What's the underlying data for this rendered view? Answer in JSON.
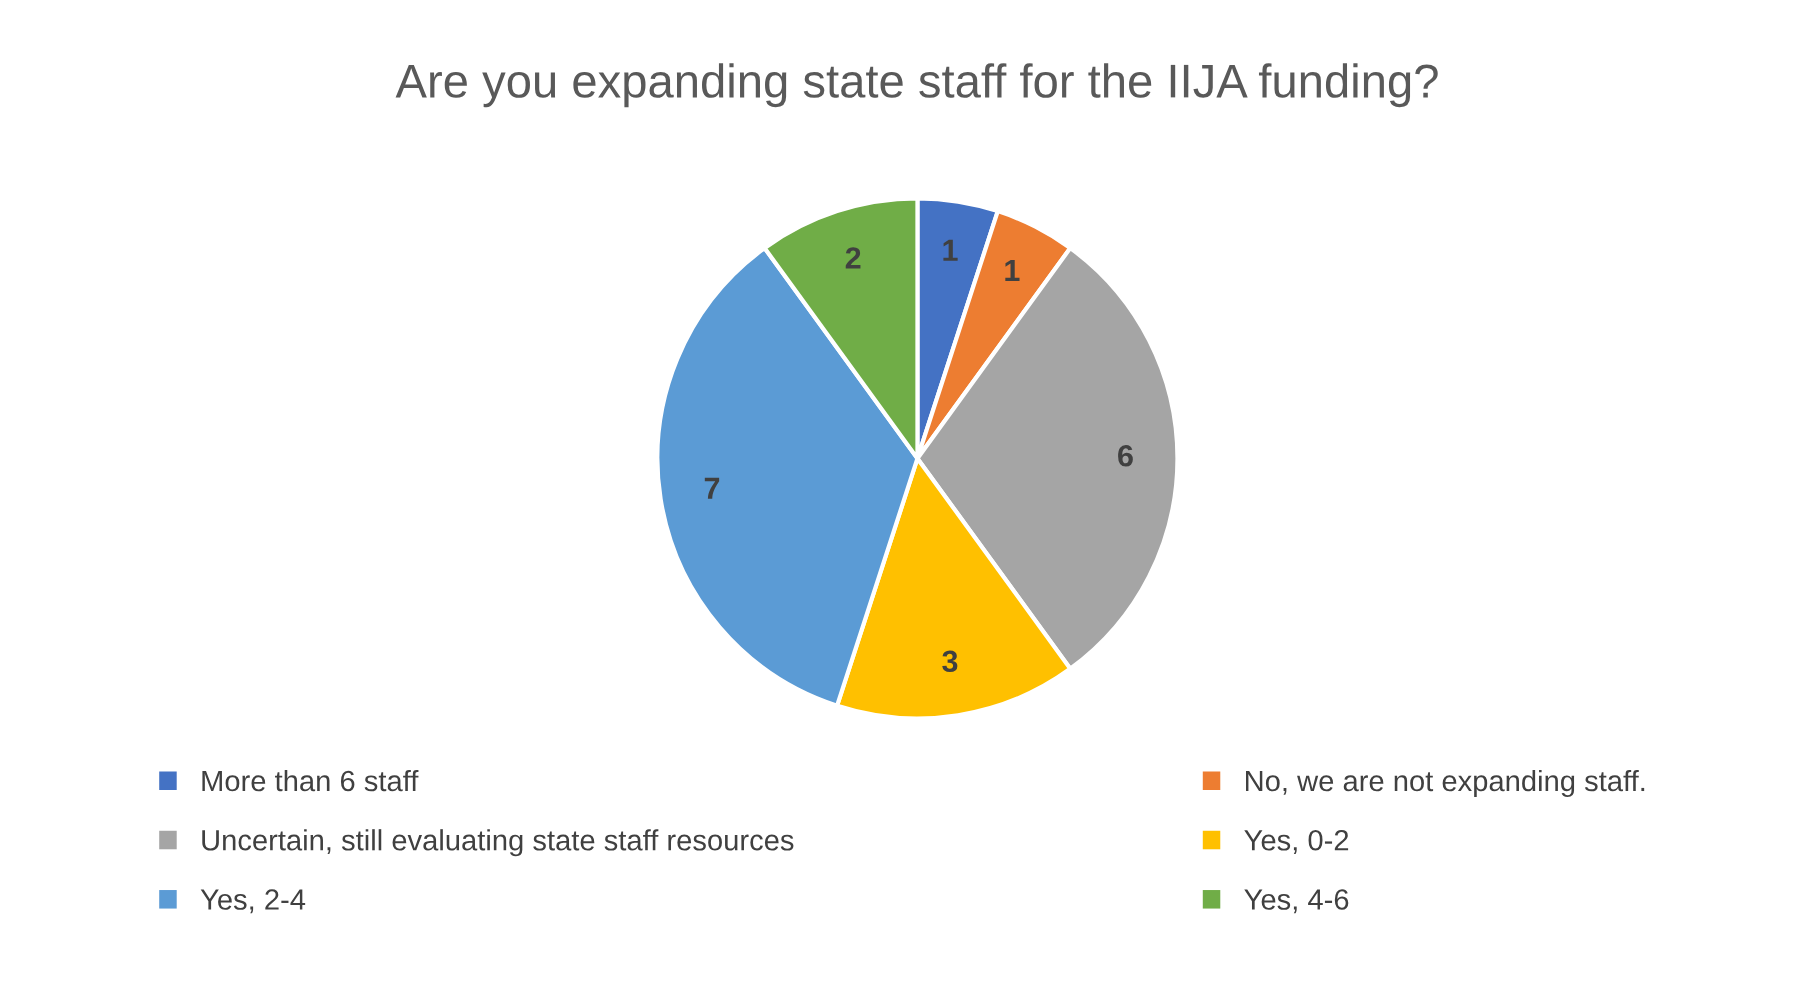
{
  "chart_data": {
    "type": "pie",
    "title": "Are you expanding state staff for the IIJA funding?",
    "categories": [
      "More than 6 staff",
      "No, we are not expanding staff.",
      "Uncertain, still evaluating state staff resources",
      "Yes, 0-2",
      "Yes, 2-4",
      "Yes, 4-6"
    ],
    "values": [
      1,
      1,
      6,
      3,
      7,
      2
    ],
    "colors": [
      "#4472c4",
      "#ed7d31",
      "#a5a5a5",
      "#ffc000",
      "#5b9bd5",
      "#70ad47"
    ],
    "data_labels": true,
    "legend": "bottom"
  }
}
